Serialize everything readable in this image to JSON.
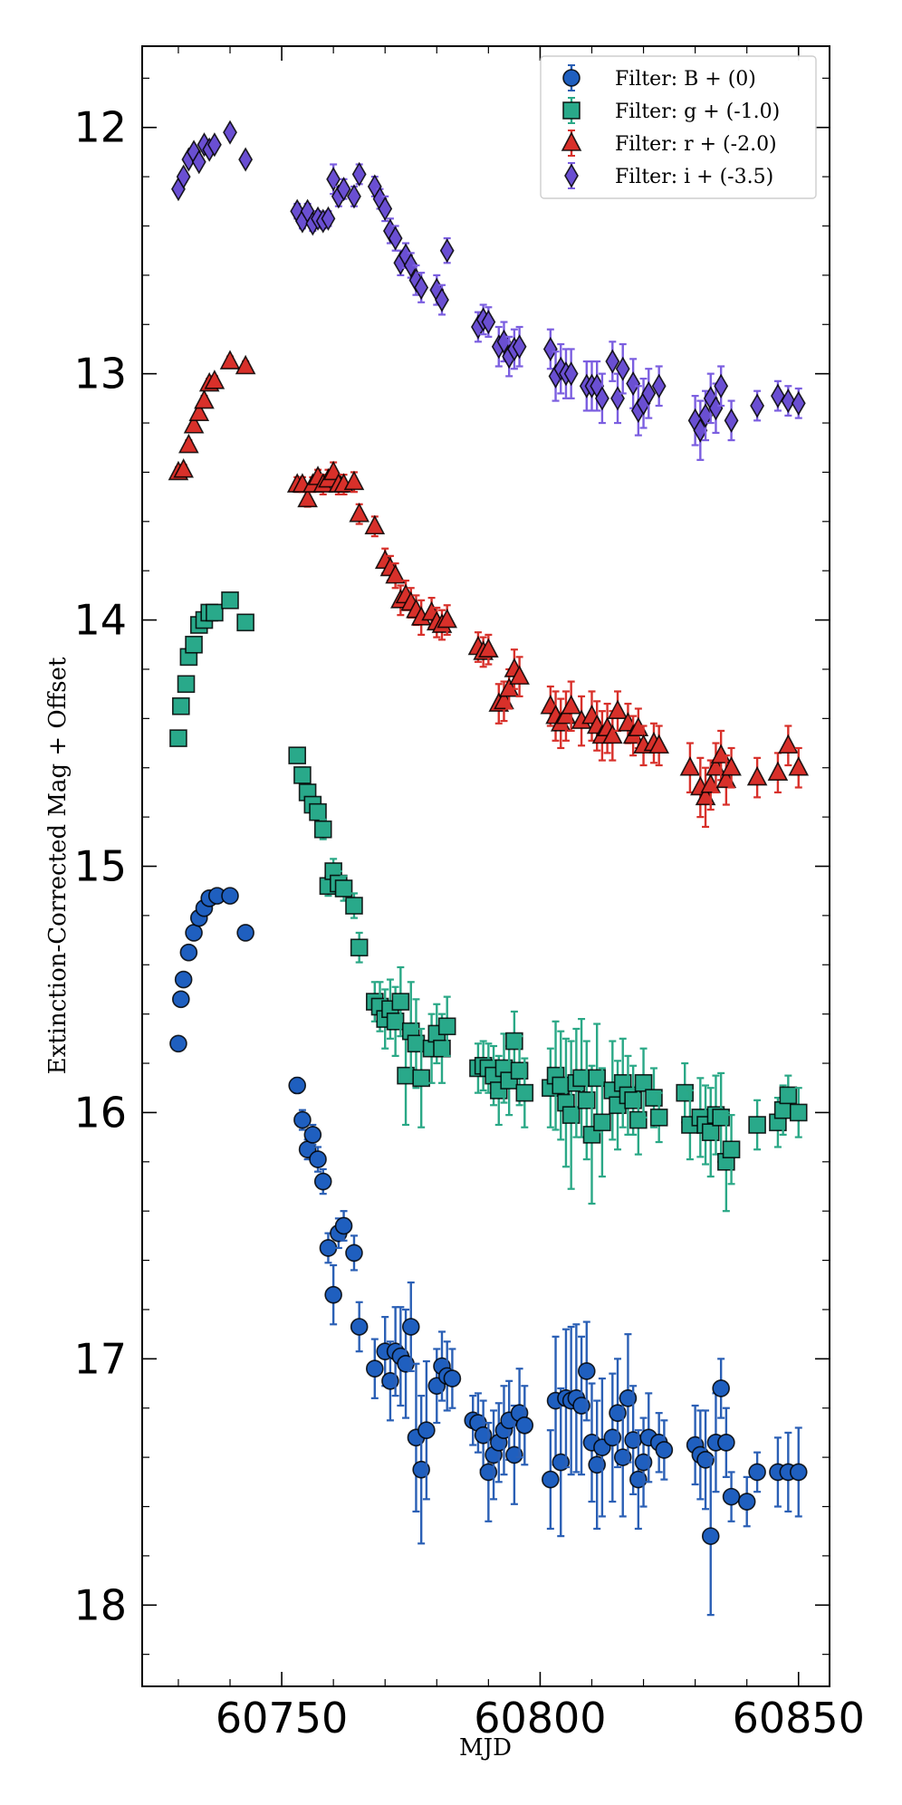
{
  "chart_data": {
    "type": "scatter",
    "title": "",
    "xlabel": "MJD",
    "ylabel": "Extinction-Corrected Mag + Offset",
    "xlim": [
      60723,
      60856
    ],
    "ylim": [
      18.33,
      11.67
    ],
    "y_inverted": true,
    "grid": false,
    "legend_position": "top-right",
    "x_ticks": [
      60750,
      60800,
      60850
    ],
    "x_tick_labels": [
      "60750",
      "60800",
      "60850"
    ],
    "y_ticks": [
      12,
      13,
      14,
      15,
      16,
      17,
      18
    ],
    "y_tick_labels": [
      "12",
      "13",
      "14",
      "15",
      "16",
      "17",
      "18"
    ],
    "series": [
      {
        "name": "Filter: B + (0)",
        "marker": "circle",
        "color": "#1f5fbf",
        "errcolor": "#2a5fb5",
        "x": [
          60730,
          60730.5,
          60731,
          60732,
          60733,
          60734,
          60735,
          60736,
          60737.5,
          60740,
          60743,
          60753,
          60754,
          60755,
          60756,
          60757,
          60758,
          60759,
          60760,
          60761,
          60762,
          60764,
          60765,
          60768,
          60770,
          60771,
          60772,
          60773,
          60774,
          60775,
          60776,
          60777,
          60778,
          60780,
          60781,
          60782,
          60783,
          60787,
          60788,
          60789,
          60790,
          60791,
          60792,
          60793,
          60794,
          60795,
          60796,
          60797,
          60802,
          60803,
          60804,
          60805,
          60806,
          60807,
          60808,
          60809,
          60810,
          60811,
          60812,
          60814,
          60815,
          60816,
          60817,
          60818,
          60819,
          60820,
          60821,
          60823,
          60824,
          60830,
          60831,
          60832,
          60833,
          60834,
          60835,
          60836,
          60837,
          60840,
          60842,
          60846,
          60848,
          60850
        ],
        "y": [
          15.72,
          15.54,
          15.46,
          15.35,
          15.27,
          15.21,
          15.17,
          15.13,
          15.12,
          15.12,
          15.27,
          15.89,
          16.03,
          16.15,
          16.09,
          16.19,
          16.28,
          16.55,
          16.74,
          16.49,
          16.46,
          16.57,
          16.87,
          17.04,
          16.97,
          17.09,
          16.97,
          16.99,
          17.02,
          16.87,
          17.32,
          17.45,
          17.29,
          17.11,
          17.03,
          17.07,
          17.08,
          17.25,
          17.26,
          17.31,
          17.46,
          17.39,
          17.34,
          17.29,
          17.25,
          17.39,
          17.22,
          17.27,
          17.49,
          17.17,
          17.42,
          17.16,
          17.17,
          17.16,
          17.19,
          17.05,
          17.34,
          17.43,
          17.36,
          17.32,
          17.22,
          17.4,
          17.16,
          17.33,
          17.49,
          17.42,
          17.32,
          17.34,
          17.37,
          17.35,
          17.39,
          17.41,
          17.72,
          17.34,
          17.12,
          17.34,
          17.56,
          17.58,
          17.46,
          17.46,
          17.46,
          17.46
        ],
        "err": [
          0.02,
          0.02,
          0.02,
          0.02,
          0.02,
          0.02,
          0.02,
          0.02,
          0.02,
          0.02,
          0.02,
          0.03,
          0.04,
          0.04,
          0.04,
          0.05,
          0.05,
          0.06,
          0.12,
          0.06,
          0.06,
          0.07,
          0.1,
          0.12,
          0.14,
          0.16,
          0.18,
          0.2,
          0.22,
          0.18,
          0.3,
          0.3,
          0.28,
          0.15,
          0.14,
          0.14,
          0.12,
          0.1,
          0.12,
          0.14,
          0.2,
          0.18,
          0.16,
          0.18,
          0.16,
          0.2,
          0.18,
          0.16,
          0.2,
          0.26,
          0.3,
          0.28,
          0.3,
          0.3,
          0.28,
          0.2,
          0.24,
          0.26,
          0.28,
          0.26,
          0.22,
          0.24,
          0.26,
          0.22,
          0.2,
          0.18,
          0.18,
          0.12,
          0.12,
          0.16,
          0.18,
          0.2,
          0.32,
          0.2,
          0.12,
          0.14,
          0.1,
          0.1,
          0.08,
          0.14,
          0.16,
          0.18
        ]
      },
      {
        "name": "Filter: g + (-1.0)",
        "marker": "square",
        "color": "#29a98a",
        "errcolor": "#2aa886",
        "x": [
          60730,
          60730.5,
          60731.5,
          60732,
          60733,
          60734,
          60735,
          60736,
          60737,
          60740,
          60743,
          60753,
          60754,
          60755,
          60756,
          60757,
          60758,
          60759,
          60760,
          60761,
          60762,
          60764,
          60765,
          60768,
          60769,
          60770,
          60771,
          60772,
          60773,
          60774,
          60775,
          60776,
          60777,
          60779,
          60780,
          60781,
          60782,
          60788,
          60789,
          60790,
          60791,
          60792,
          60793,
          60794,
          60795,
          60796,
          60797,
          60802,
          60803,
          60804,
          60805,
          60806,
          60807,
          60808,
          60809,
          60810,
          60811,
          60812,
          60814,
          60815,
          60816,
          60817,
          60818,
          60819,
          60820,
          60822,
          60823,
          60828,
          60829,
          60831,
          60832,
          60833,
          60834,
          60835,
          60836,
          60837,
          60842,
          60846,
          60847,
          60848,
          60850
        ],
        "y": [
          14.48,
          14.35,
          14.26,
          14.15,
          14.1,
          14.02,
          14.0,
          13.97,
          13.97,
          13.92,
          14.01,
          14.55,
          14.63,
          14.7,
          14.75,
          14.78,
          14.85,
          15.08,
          15.02,
          15.07,
          15.09,
          15.16,
          15.33,
          15.55,
          15.57,
          15.62,
          15.58,
          15.63,
          15.55,
          15.85,
          15.67,
          15.72,
          15.86,
          15.74,
          15.68,
          15.74,
          15.65,
          15.82,
          15.81,
          15.82,
          15.85,
          15.91,
          15.82,
          15.87,
          15.71,
          15.83,
          15.92,
          15.9,
          15.85,
          15.89,
          15.96,
          16.01,
          15.88,
          15.86,
          15.95,
          16.09,
          15.86,
          16.04,
          15.91,
          15.97,
          15.88,
          15.93,
          15.95,
          16.03,
          15.88,
          15.94,
          16.02,
          15.92,
          16.05,
          16.02,
          16.05,
          16.08,
          16.01,
          16.02,
          16.2,
          16.15,
          16.05,
          16.04,
          15.99,
          15.93,
          16.0
        ],
        "err": [
          0.02,
          0.02,
          0.02,
          0.02,
          0.02,
          0.02,
          0.02,
          0.02,
          0.02,
          0.02,
          0.02,
          0.02,
          0.03,
          0.03,
          0.03,
          0.03,
          0.04,
          0.04,
          0.05,
          0.05,
          0.05,
          0.05,
          0.06,
          0.08,
          0.1,
          0.12,
          0.12,
          0.14,
          0.14,
          0.2,
          0.2,
          0.18,
          0.2,
          0.14,
          0.12,
          0.14,
          0.12,
          0.1,
          0.1,
          0.1,
          0.12,
          0.14,
          0.14,
          0.14,
          0.12,
          0.14,
          0.14,
          0.16,
          0.22,
          0.22,
          0.26,
          0.3,
          0.22,
          0.24,
          0.24,
          0.28,
          0.22,
          0.22,
          0.2,
          0.18,
          0.18,
          0.16,
          0.14,
          0.14,
          0.14,
          0.12,
          0.1,
          0.12,
          0.14,
          0.16,
          0.16,
          0.18,
          0.16,
          0.18,
          0.2,
          0.14,
          0.1,
          0.1,
          0.1,
          0.08,
          0.1
        ]
      },
      {
        "name": "Filter: r + (-2.0)",
        "marker": "triangle",
        "color": "#d8302a",
        "errcolor": "#d8302a",
        "x": [
          60730,
          60731,
          60732,
          60733,
          60734,
          60735,
          60736,
          60737,
          60740,
          60743,
          60753,
          60754,
          60755,
          60756,
          60757,
          60758,
          60759,
          60760,
          60761,
          60762,
          60764,
          60765,
          60768,
          60770,
          60771,
          60772,
          60773,
          60774,
          60775,
          60776,
          60777,
          60779,
          60780,
          60781,
          60782,
          60788,
          60789,
          60790,
          60792,
          60793,
          60794,
          60795,
          60796,
          60802,
          60803,
          60804,
          60805,
          60806,
          60808,
          60810,
          60811,
          60812,
          60813,
          60814,
          60815,
          60817,
          60818,
          60819,
          60820,
          60822,
          60823,
          60829,
          60831,
          60832,
          60833,
          60834,
          60835,
          60836,
          60837,
          60842,
          60846,
          60848,
          60850
        ],
        "y": [
          13.4,
          13.39,
          13.29,
          13.21,
          13.16,
          13.11,
          13.04,
          13.03,
          12.95,
          12.97,
          13.45,
          13.45,
          13.51,
          13.45,
          13.42,
          13.45,
          13.43,
          13.4,
          13.45,
          13.45,
          13.44,
          13.57,
          13.62,
          13.76,
          13.79,
          13.82,
          13.92,
          13.9,
          13.93,
          13.96,
          13.99,
          13.97,
          14.01,
          14.02,
          14.0,
          14.11,
          14.13,
          14.12,
          14.34,
          14.33,
          14.28,
          14.2,
          14.23,
          14.35,
          14.39,
          14.42,
          14.39,
          14.35,
          14.41,
          14.39,
          14.43,
          14.47,
          14.44,
          14.47,
          14.37,
          14.42,
          14.47,
          14.44,
          14.51,
          14.5,
          14.51,
          14.6,
          14.68,
          14.72,
          14.67,
          14.6,
          14.55,
          14.65,
          14.6,
          14.64,
          14.62,
          14.51,
          14.6
        ],
        "err": [
          0.02,
          0.02,
          0.02,
          0.02,
          0.02,
          0.02,
          0.02,
          0.02,
          0.02,
          0.02,
          0.03,
          0.03,
          0.03,
          0.03,
          0.03,
          0.04,
          0.04,
          0.04,
          0.04,
          0.04,
          0.04,
          0.04,
          0.04,
          0.05,
          0.05,
          0.05,
          0.06,
          0.06,
          0.06,
          0.06,
          0.07,
          0.06,
          0.06,
          0.06,
          0.06,
          0.06,
          0.06,
          0.06,
          0.08,
          0.08,
          0.08,
          0.08,
          0.08,
          0.08,
          0.1,
          0.1,
          0.1,
          0.1,
          0.1,
          0.1,
          0.1,
          0.1,
          0.1,
          0.1,
          0.08,
          0.08,
          0.08,
          0.08,
          0.08,
          0.08,
          0.08,
          0.1,
          0.12,
          0.12,
          0.1,
          0.1,
          0.1,
          0.1,
          0.08,
          0.08,
          0.08,
          0.08,
          0.08
        ]
      },
      {
        "name": "Filter: i + (-3.5)",
        "marker": "diamond",
        "color": "#6a4fd2",
        "errcolor": "#7b5ee0",
        "x": [
          60730,
          60731,
          60732,
          60733,
          60734,
          60735,
          60736,
          60737,
          60740,
          60743,
          60753,
          60754,
          60755,
          60756,
          60757,
          60758,
          60759,
          60760,
          60761,
          60762,
          60764,
          60765,
          60768,
          60769,
          60770,
          60771,
          60772,
          60773,
          60774,
          60775,
          60776,
          60777,
          60780,
          60781,
          60782,
          60788,
          60789,
          60790,
          60792,
          60793,
          60794,
          60795,
          60796,
          60802,
          60803,
          60804,
          60805,
          60806,
          60809,
          60810,
          60811,
          60812,
          60814,
          60815,
          60816,
          60818,
          60819,
          60820,
          60821,
          60823,
          60830,
          60831,
          60832,
          60833,
          60834,
          60835,
          60837,
          60842,
          60846,
          60848,
          60850
        ],
        "y": [
          12.25,
          12.2,
          12.13,
          12.1,
          12.14,
          12.07,
          12.09,
          12.07,
          12.02,
          12.13,
          12.34,
          12.38,
          12.34,
          12.39,
          12.37,
          12.38,
          12.37,
          12.21,
          12.28,
          12.25,
          12.28,
          12.19,
          12.24,
          12.29,
          12.33,
          12.42,
          12.45,
          12.55,
          12.52,
          12.56,
          12.62,
          12.65,
          12.66,
          12.7,
          12.5,
          12.81,
          12.78,
          12.79,
          12.89,
          12.87,
          12.93,
          12.9,
          12.89,
          12.9,
          13.01,
          12.98,
          13.0,
          13.0,
          13.05,
          13.05,
          13.05,
          13.1,
          12.95,
          13.1,
          12.98,
          13.04,
          13.15,
          13.12,
          13.08,
          13.05,
          13.19,
          13.23,
          13.17,
          13.1,
          13.14,
          13.05,
          13.19,
          13.13,
          13.09,
          13.11,
          13.12
        ],
        "err": [
          0.02,
          0.02,
          0.02,
          0.02,
          0.02,
          0.02,
          0.02,
          0.02,
          0.02,
          0.02,
          0.03,
          0.03,
          0.03,
          0.03,
          0.03,
          0.03,
          0.03,
          0.06,
          0.04,
          0.04,
          0.04,
          0.04,
          0.04,
          0.04,
          0.05,
          0.05,
          0.05,
          0.05,
          0.05,
          0.05,
          0.06,
          0.06,
          0.06,
          0.06,
          0.05,
          0.06,
          0.06,
          0.06,
          0.08,
          0.08,
          0.08,
          0.08,
          0.08,
          0.08,
          0.1,
          0.1,
          0.1,
          0.1,
          0.1,
          0.1,
          0.1,
          0.1,
          0.08,
          0.1,
          0.1,
          0.1,
          0.1,
          0.1,
          0.1,
          0.08,
          0.1,
          0.12,
          0.1,
          0.1,
          0.1,
          0.08,
          0.08,
          0.06,
          0.06,
          0.06,
          0.06
        ]
      }
    ]
  }
}
